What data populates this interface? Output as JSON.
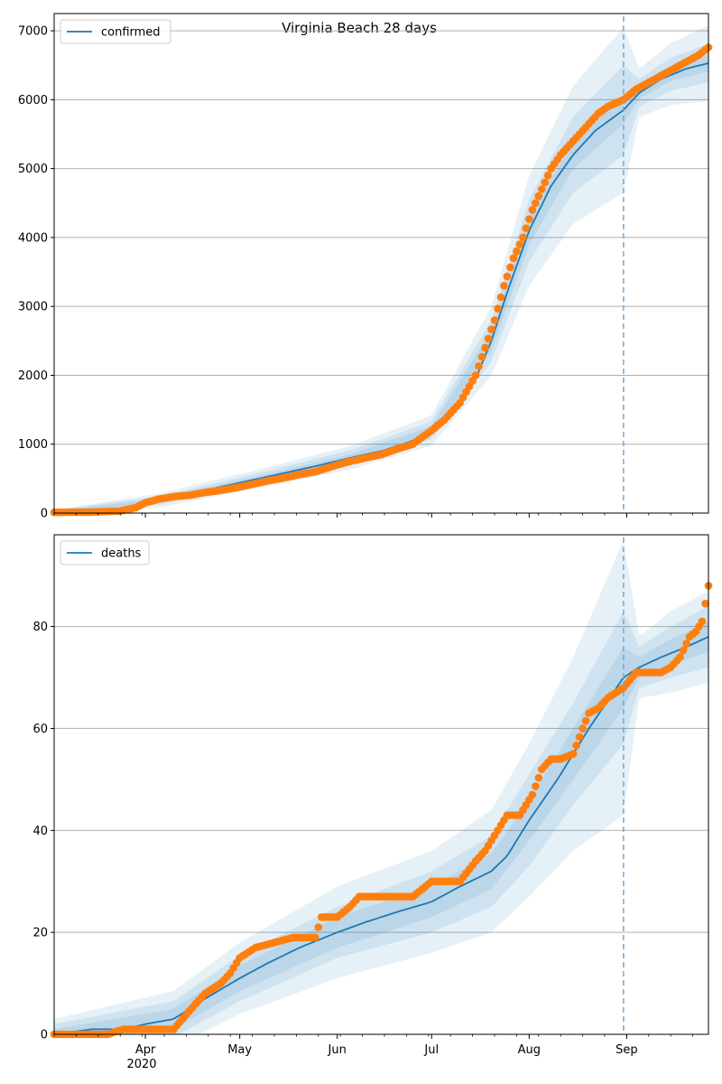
{
  "figure": {
    "title": "Virginia Beach 28 days",
    "year_label": "2020"
  },
  "x_axis": {
    "type": "date",
    "range": [
      "2020-03-03",
      "2020-09-27"
    ],
    "month_ticks": [
      {
        "label": "Apr",
        "date": "2020-04-01"
      },
      {
        "label": "May",
        "date": "2020-05-01"
      },
      {
        "label": "Jun",
        "date": "2020-06-01"
      },
      {
        "label": "Jul",
        "date": "2020-07-01"
      },
      {
        "label": "Aug",
        "date": "2020-08-01"
      },
      {
        "label": "Sep",
        "date": "2020-09-01"
      }
    ]
  },
  "colors": {
    "model_line": "#1f77b4",
    "band": "#1f77b4",
    "observed": "#ff7f0e",
    "grid": "#b0b0b0",
    "forecast_marker": "#6fa8dc"
  },
  "chart_data": [
    {
      "type": "line",
      "panel": "confirmed",
      "legend": {
        "label": "confirmed",
        "placement": "upper-left"
      },
      "grid": "y",
      "ylim": [
        0,
        7250
      ],
      "yticks": [
        0,
        1000,
        2000,
        3000,
        4000,
        5000,
        6000,
        7000
      ],
      "forecast_start": "2020-08-31",
      "model": {
        "x": [
          "2020-03-03",
          "2020-03-15",
          "2020-03-25",
          "2020-04-05",
          "2020-04-15",
          "2020-04-25",
          "2020-05-05",
          "2020-05-15",
          "2020-05-25",
          "2020-06-05",
          "2020-06-15",
          "2020-06-25",
          "2020-07-01",
          "2020-07-08",
          "2020-07-15",
          "2020-07-20",
          "2020-07-25",
          "2020-08-01",
          "2020-08-08",
          "2020-08-15",
          "2020-08-22",
          "2020-08-31",
          "2020-09-05",
          "2020-09-12",
          "2020-09-20",
          "2020-09-27"
        ],
        "values": [
          10,
          15,
          40,
          180,
          280,
          380,
          480,
          580,
          680,
          800,
          900,
          1050,
          1200,
          1480,
          1950,
          2500,
          3200,
          4100,
          4750,
          5200,
          5550,
          5850,
          6100,
          6300,
          6450,
          6530
        ]
      },
      "bands": {
        "x": [
          "2020-03-03",
          "2020-04-05",
          "2020-05-05",
          "2020-06-05",
          "2020-07-01",
          "2020-07-20",
          "2020-08-01",
          "2020-08-15",
          "2020-08-31",
          "2020-09-05",
          "2020-09-15",
          "2020-09-27"
        ],
        "center": [
          10,
          180,
          480,
          800,
          1200,
          2500,
          4100,
          5200,
          5850,
          6100,
          6370,
          6530
        ],
        "spreads": [
          [
            20,
            30,
            40,
            50,
            60,
            150,
            200,
            200,
            200,
            80,
            100,
            120
          ],
          [
            30,
            60,
            80,
            110,
            130,
            300,
            450,
            550,
            650,
            200,
            240,
            280
          ],
          [
            40,
            100,
            130,
            170,
            220,
            500,
            800,
            1000,
            1200,
            350,
            450,
            550
          ]
        ]
      },
      "observed": {
        "x": [
          "2020-03-03",
          "2020-03-15",
          "2020-03-24",
          "2020-03-29",
          "2020-04-01",
          "2020-04-05",
          "2020-04-10",
          "2020-04-15",
          "2020-04-20",
          "2020-04-25",
          "2020-05-01",
          "2020-05-05",
          "2020-05-10",
          "2020-05-15",
          "2020-05-20",
          "2020-05-25",
          "2020-06-01",
          "2020-06-05",
          "2020-06-10",
          "2020-06-15",
          "2020-06-20",
          "2020-06-25",
          "2020-07-01",
          "2020-07-05",
          "2020-07-10",
          "2020-07-15",
          "2020-07-18",
          "2020-07-21",
          "2020-07-24",
          "2020-07-27",
          "2020-07-30",
          "2020-08-02",
          "2020-08-05",
          "2020-08-08",
          "2020-08-11",
          "2020-08-14",
          "2020-08-17",
          "2020-08-20",
          "2020-08-23",
          "2020-08-26",
          "2020-08-31",
          "2020-09-04",
          "2020-09-08",
          "2020-09-12",
          "2020-09-16",
          "2020-09-20",
          "2020-09-24",
          "2020-09-27"
        ],
        "values": [
          10,
          15,
          30,
          80,
          150,
          200,
          240,
          260,
          300,
          330,
          380,
          420,
          470,
          510,
          560,
          600,
          700,
          750,
          800,
          850,
          930,
          1000,
          1200,
          1350,
          1600,
          2000,
          2400,
          2800,
          3300,
          3700,
          4000,
          4400,
          4700,
          5000,
          5200,
          5350,
          5500,
          5650,
          5800,
          5900,
          6000,
          6150,
          6250,
          6350,
          6450,
          6550,
          6650,
          6760
        ]
      }
    },
    {
      "type": "line",
      "panel": "deaths",
      "legend": {
        "label": "deaths",
        "placement": "upper-left"
      },
      "grid": "y",
      "ylim": [
        0,
        98
      ],
      "yticks": [
        0,
        20,
        40,
        60,
        80
      ],
      "forecast_start": "2020-08-31",
      "model": {
        "x": [
          "2020-03-03",
          "2020-03-15",
          "2020-03-25",
          "2020-04-01",
          "2020-04-10",
          "2020-04-20",
          "2020-05-01",
          "2020-05-10",
          "2020-05-20",
          "2020-06-01",
          "2020-06-10",
          "2020-06-20",
          "2020-07-01",
          "2020-07-10",
          "2020-07-20",
          "2020-07-25",
          "2020-08-01",
          "2020-08-10",
          "2020-08-20",
          "2020-08-31",
          "2020-09-05",
          "2020-09-12",
          "2020-09-20",
          "2020-09-27"
        ],
        "values": [
          0,
          1,
          1,
          2,
          3,
          7,
          11,
          14,
          17,
          20,
          22,
          24,
          26,
          29,
          32,
          35,
          42,
          50,
          60,
          70,
          72,
          74,
          76,
          78
        ]
      },
      "bands": {
        "x": [
          "2020-03-03",
          "2020-04-10",
          "2020-05-01",
          "2020-06-01",
          "2020-07-01",
          "2020-07-20",
          "2020-08-01",
          "2020-08-15",
          "2020-08-31",
          "2020-09-05",
          "2020-09-15",
          "2020-09-27"
        ],
        "center": [
          0,
          3,
          11,
          20,
          26,
          32,
          42,
          55,
          70,
          72,
          75,
          78
        ],
        "spreads": [
          [
            1,
            2,
            2.5,
            3,
            3,
            3.5,
            4,
            5,
            6,
            2,
            2.5,
            3
          ],
          [
            2,
            3.5,
            4.5,
            5,
            6,
            7,
            9,
            10,
            13,
            4,
            5,
            6
          ],
          [
            3,
            5.5,
            7,
            9,
            10,
            12,
            15,
            19,
            27,
            6,
            8,
            9
          ]
        ]
      },
      "observed": {
        "x": [
          "2020-03-03",
          "2020-03-20",
          "2020-03-25",
          "2020-04-10",
          "2020-04-17",
          "2020-04-20",
          "2020-04-25",
          "2020-04-28",
          "2020-05-01",
          "2020-05-06",
          "2020-05-12",
          "2020-05-18",
          "2020-05-25",
          "2020-05-27",
          "2020-06-01",
          "2020-06-05",
          "2020-06-08",
          "2020-06-15",
          "2020-06-20",
          "2020-06-25",
          "2020-07-01",
          "2020-07-05",
          "2020-07-10",
          "2020-07-15",
          "2020-07-18",
          "2020-07-20",
          "2020-07-23",
          "2020-07-25",
          "2020-07-29",
          "2020-08-02",
          "2020-08-05",
          "2020-08-08",
          "2020-08-11",
          "2020-08-15",
          "2020-08-18",
          "2020-08-20",
          "2020-08-23",
          "2020-08-26",
          "2020-08-31",
          "2020-09-04",
          "2020-09-08",
          "2020-09-12",
          "2020-09-15",
          "2020-09-18",
          "2020-09-21",
          "2020-09-23",
          "2020-09-25",
          "2020-09-27"
        ],
        "values": [
          0,
          0,
          1,
          1,
          6,
          8,
          10,
          12,
          15,
          17,
          18,
          19,
          19,
          23,
          23,
          25,
          27,
          27,
          27,
          27,
          30,
          30,
          30,
          34,
          36,
          38,
          41,
          43,
          43,
          47,
          52,
          54,
          54,
          55,
          60,
          63,
          64,
          66,
          68,
          71,
          71,
          71,
          72,
          74,
          78,
          79,
          81,
          88
        ]
      }
    }
  ]
}
